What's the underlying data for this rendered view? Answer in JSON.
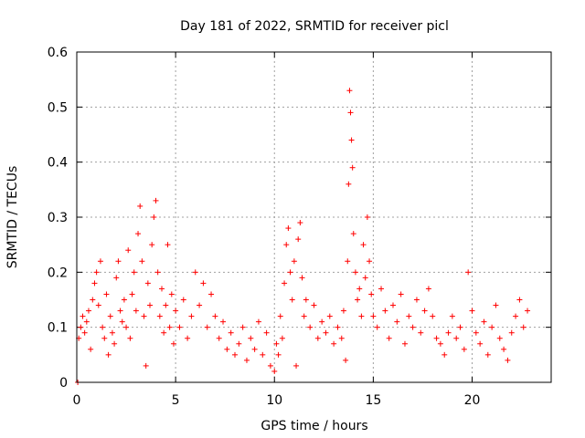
{
  "chart_data": {
    "type": "scatter",
    "title": "Day 181 of 2022, SRMTID for receiver picl",
    "xlabel": "GPS time / hours",
    "ylabel": "SRMTID / TECUs",
    "xlim": [
      0,
      24
    ],
    "ylim": [
      0,
      0.6
    ],
    "xticks": [
      0,
      5,
      10,
      15,
      20
    ],
    "xtick_labels": [
      "0",
      "5",
      "10",
      "15",
      "20"
    ],
    "yticks": [
      0,
      0.1,
      0.2,
      0.3,
      0.4,
      0.5,
      0.6
    ],
    "ytick_labels": [
      "0",
      "0.1",
      "0.2",
      "0.3",
      "0.4",
      "0.5",
      "0.6"
    ],
    "grid": true,
    "marker": "+",
    "series": [
      {
        "name": "SRMTID",
        "color": "#ff0000",
        "points": [
          [
            0.05,
            0.0
          ],
          [
            0.1,
            0.08
          ],
          [
            0.2,
            0.1
          ],
          [
            0.3,
            0.12
          ],
          [
            0.4,
            0.09
          ],
          [
            0.5,
            0.11
          ],
          [
            0.6,
            0.13
          ],
          [
            0.7,
            0.06
          ],
          [
            0.8,
            0.15
          ],
          [
            0.9,
            0.18
          ],
          [
            1.0,
            0.2
          ],
          [
            1.1,
            0.14
          ],
          [
            1.2,
            0.22
          ],
          [
            1.3,
            0.1
          ],
          [
            1.4,
            0.08
          ],
          [
            1.5,
            0.16
          ],
          [
            1.6,
            0.05
          ],
          [
            1.7,
            0.12
          ],
          [
            1.8,
            0.09
          ],
          [
            1.9,
            0.07
          ],
          [
            2.0,
            0.19
          ],
          [
            2.1,
            0.22
          ],
          [
            2.2,
            0.13
          ],
          [
            2.3,
            0.11
          ],
          [
            2.4,
            0.15
          ],
          [
            2.5,
            0.1
          ],
          [
            2.6,
            0.24
          ],
          [
            2.7,
            0.08
          ],
          [
            2.8,
            0.16
          ],
          [
            2.9,
            0.2
          ],
          [
            3.0,
            0.13
          ],
          [
            3.1,
            0.27
          ],
          [
            3.2,
            0.32
          ],
          [
            3.3,
            0.22
          ],
          [
            3.4,
            0.12
          ],
          [
            3.5,
            0.03
          ],
          [
            3.6,
            0.18
          ],
          [
            3.7,
            0.14
          ],
          [
            3.8,
            0.25
          ],
          [
            3.9,
            0.3
          ],
          [
            4.0,
            0.33
          ],
          [
            4.1,
            0.2
          ],
          [
            4.2,
            0.12
          ],
          [
            4.3,
            0.17
          ],
          [
            4.4,
            0.09
          ],
          [
            4.5,
            0.14
          ],
          [
            4.6,
            0.25
          ],
          [
            4.7,
            0.1
          ],
          [
            4.8,
            0.16
          ],
          [
            4.9,
            0.07
          ],
          [
            5.0,
            0.13
          ],
          [
            5.2,
            0.1
          ],
          [
            5.4,
            0.15
          ],
          [
            5.6,
            0.08
          ],
          [
            5.8,
            0.12
          ],
          [
            6.0,
            0.2
          ],
          [
            6.2,
            0.14
          ],
          [
            6.4,
            0.18
          ],
          [
            6.6,
            0.1
          ],
          [
            6.8,
            0.16
          ],
          [
            7.0,
            0.12
          ],
          [
            7.2,
            0.08
          ],
          [
            7.4,
            0.11
          ],
          [
            7.6,
            0.06
          ],
          [
            7.8,
            0.09
          ],
          [
            8.0,
            0.05
          ],
          [
            8.2,
            0.07
          ],
          [
            8.4,
            0.1
          ],
          [
            8.6,
            0.04
          ],
          [
            8.8,
            0.08
          ],
          [
            9.0,
            0.06
          ],
          [
            9.2,
            0.11
          ],
          [
            9.4,
            0.05
          ],
          [
            9.6,
            0.09
          ],
          [
            9.8,
            0.03
          ],
          [
            10.0,
            0.02
          ],
          [
            10.1,
            0.07
          ],
          [
            10.2,
            0.05
          ],
          [
            10.3,
            0.12
          ],
          [
            10.4,
            0.08
          ],
          [
            10.5,
            0.18
          ],
          [
            10.6,
            0.25
          ],
          [
            10.7,
            0.28
          ],
          [
            10.8,
            0.2
          ],
          [
            10.9,
            0.15
          ],
          [
            11.0,
            0.22
          ],
          [
            11.1,
            0.03
          ],
          [
            11.2,
            0.26
          ],
          [
            11.3,
            0.29
          ],
          [
            11.4,
            0.19
          ],
          [
            11.5,
            0.12
          ],
          [
            11.6,
            0.15
          ],
          [
            11.8,
            0.1
          ],
          [
            12.0,
            0.14
          ],
          [
            12.2,
            0.08
          ],
          [
            12.4,
            0.11
          ],
          [
            12.6,
            0.09
          ],
          [
            12.8,
            0.12
          ],
          [
            13.0,
            0.07
          ],
          [
            13.2,
            0.1
          ],
          [
            13.4,
            0.08
          ],
          [
            13.5,
            0.13
          ],
          [
            13.6,
            0.04
          ],
          [
            13.7,
            0.22
          ],
          [
            13.75,
            0.36
          ],
          [
            13.8,
            0.53
          ],
          [
            13.85,
            0.49
          ],
          [
            13.9,
            0.44
          ],
          [
            13.95,
            0.39
          ],
          [
            14.0,
            0.27
          ],
          [
            14.1,
            0.2
          ],
          [
            14.2,
            0.15
          ],
          [
            14.3,
            0.17
          ],
          [
            14.4,
            0.12
          ],
          [
            14.5,
            0.25
          ],
          [
            14.6,
            0.19
          ],
          [
            14.7,
            0.3
          ],
          [
            14.8,
            0.22
          ],
          [
            14.9,
            0.16
          ],
          [
            15.0,
            0.12
          ],
          [
            15.2,
            0.1
          ],
          [
            15.4,
            0.17
          ],
          [
            15.6,
            0.13
          ],
          [
            15.8,
            0.08
          ],
          [
            16.0,
            0.14
          ],
          [
            16.2,
            0.11
          ],
          [
            16.4,
            0.16
          ],
          [
            16.6,
            0.07
          ],
          [
            16.8,
            0.12
          ],
          [
            17.0,
            0.1
          ],
          [
            17.2,
            0.15
          ],
          [
            17.4,
            0.09
          ],
          [
            17.6,
            0.13
          ],
          [
            17.8,
            0.17
          ],
          [
            18.0,
            0.12
          ],
          [
            18.2,
            0.08
          ],
          [
            18.4,
            0.07
          ],
          [
            18.6,
            0.05
          ],
          [
            18.8,
            0.09
          ],
          [
            19.0,
            0.12
          ],
          [
            19.2,
            0.08
          ],
          [
            19.4,
            0.1
          ],
          [
            19.6,
            0.06
          ],
          [
            19.8,
            0.2
          ],
          [
            20.0,
            0.13
          ],
          [
            20.2,
            0.09
          ],
          [
            20.4,
            0.07
          ],
          [
            20.6,
            0.11
          ],
          [
            20.8,
            0.05
          ],
          [
            21.0,
            0.1
          ],
          [
            21.2,
            0.14
          ],
          [
            21.4,
            0.08
          ],
          [
            21.6,
            0.06
          ],
          [
            21.8,
            0.04
          ],
          [
            22.0,
            0.09
          ],
          [
            22.2,
            0.12
          ],
          [
            22.4,
            0.15
          ],
          [
            22.6,
            0.1
          ],
          [
            22.8,
            0.13
          ]
        ]
      }
    ]
  }
}
